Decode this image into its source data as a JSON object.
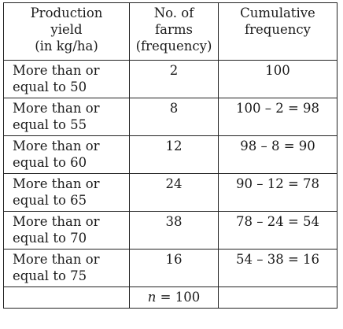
{
  "table": {
    "headers": [
      [
        "Production",
        "yield",
        "(in kg/ha)"
      ],
      [
        "No. of",
        "farms",
        "(frequency)"
      ],
      [
        "Cumulative",
        "frequency"
      ]
    ],
    "rows": [
      {
        "yield": [
          "More than or",
          "equal to 50"
        ],
        "farms": "2",
        "cumulative": "100"
      },
      {
        "yield": [
          "More than or",
          "equal to 55"
        ],
        "farms": "8",
        "cumulative": "100 – 2 = 98"
      },
      {
        "yield": [
          "More than or",
          "equal to 60"
        ],
        "farms": "12",
        "cumulative": "98 – 8 = 90"
      },
      {
        "yield": [
          "More than or",
          "equal to 65"
        ],
        "farms": "24",
        "cumulative": "90 – 12 = 78"
      },
      {
        "yield": [
          "More than or",
          "equal to 70"
        ],
        "farms": "38",
        "cumulative": "78 – 24 = 54"
      },
      {
        "yield": [
          "More than or",
          "equal to 75"
        ],
        "farms": "16",
        "cumulative": "54 – 38 = 16"
      }
    ],
    "total": {
      "var": "n",
      "rest": " = 100"
    }
  }
}
